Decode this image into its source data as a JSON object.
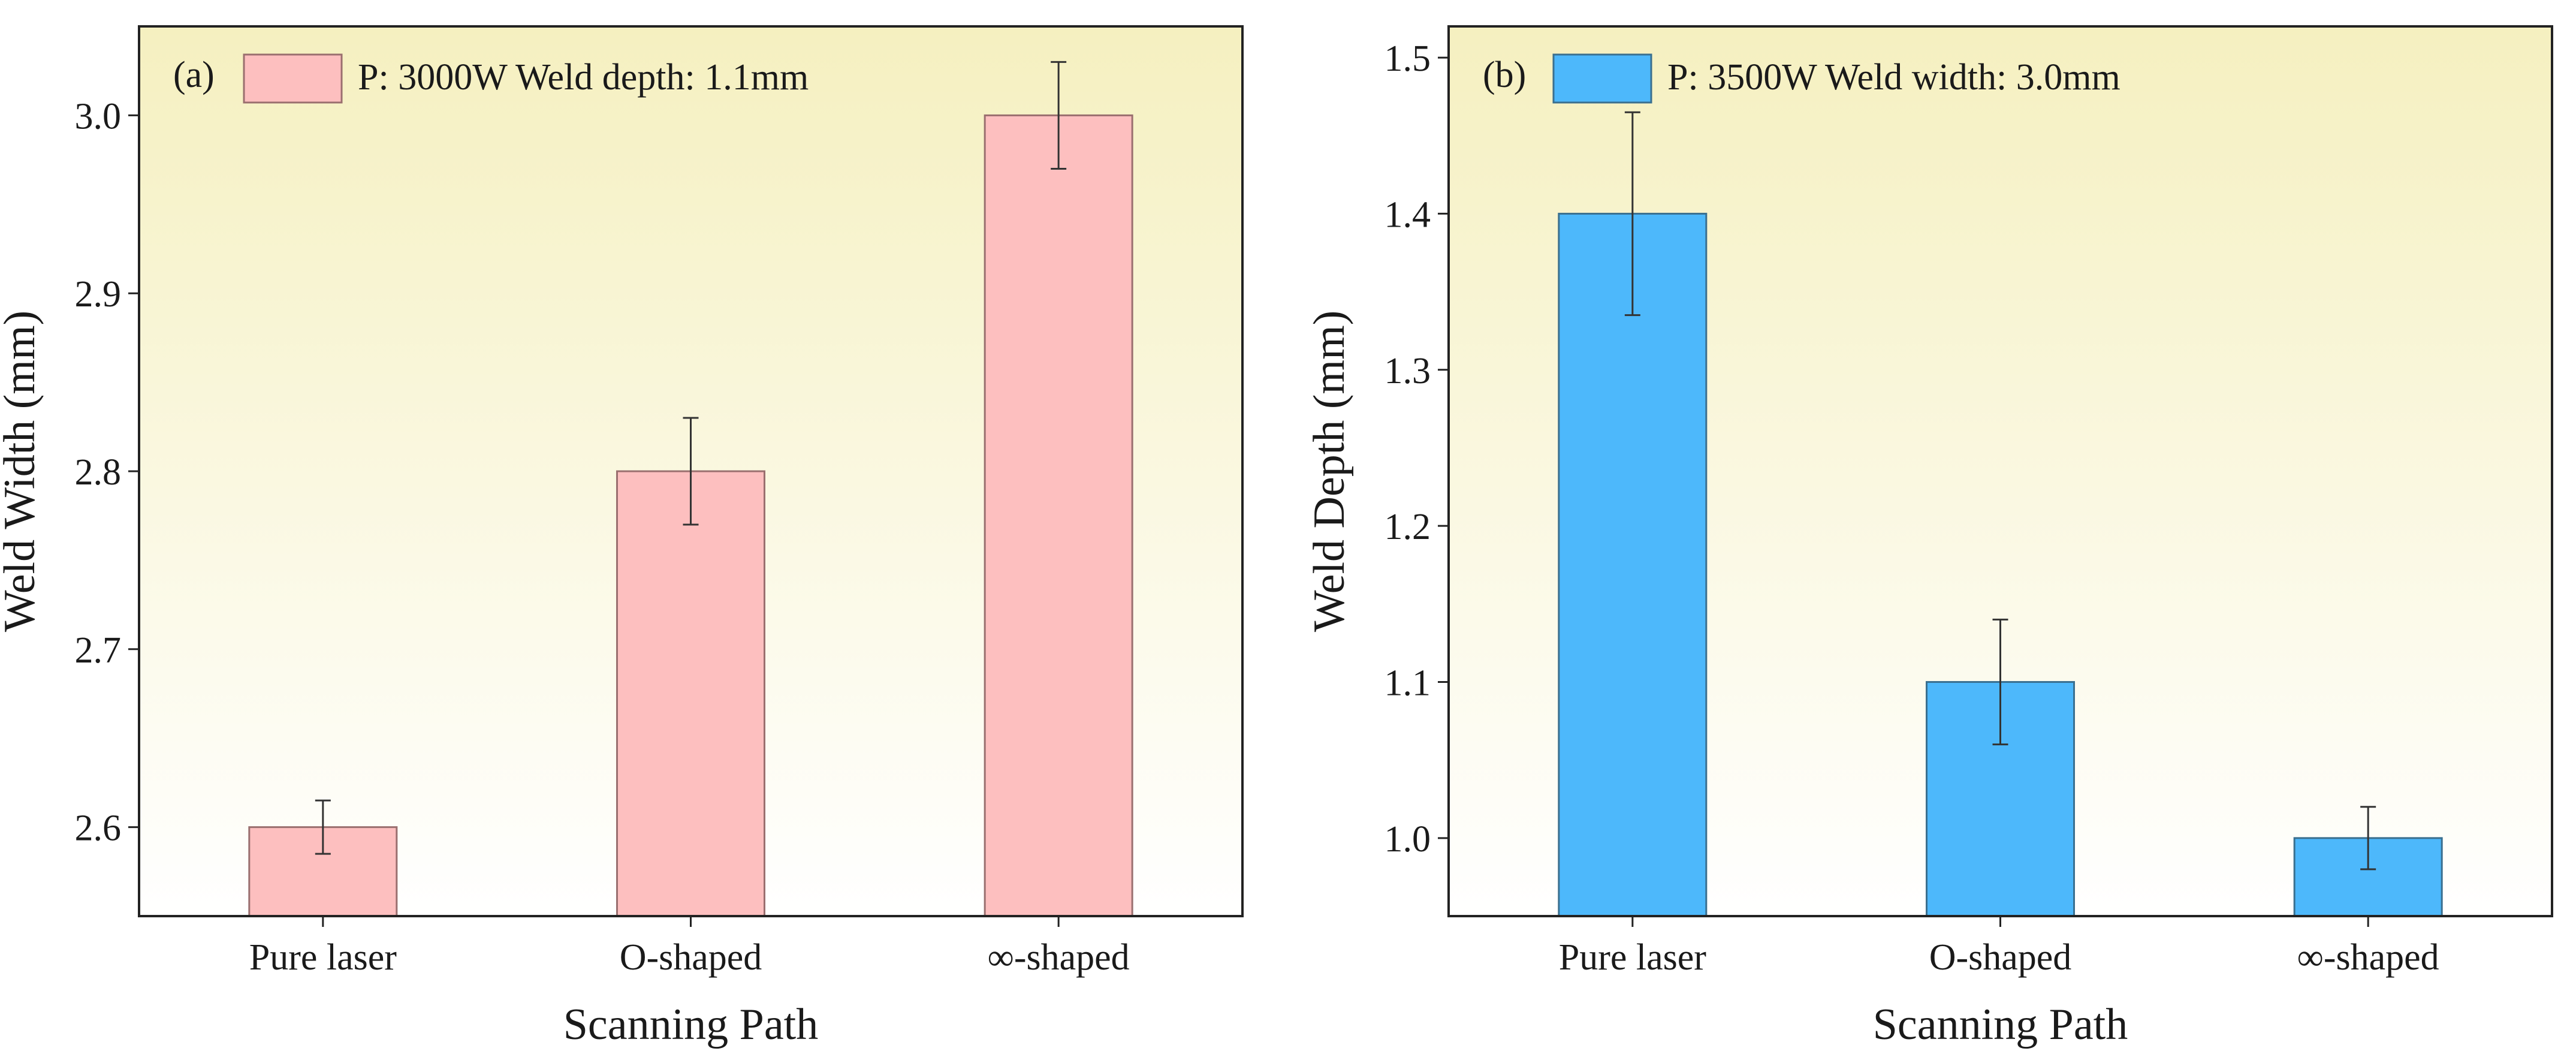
{
  "chart_data": [
    {
      "type": "bar",
      "panel_label": "(a)",
      "legend_label": "P: 3000W Weld depth: 1.1mm",
      "legend_position": "top-left",
      "categories": [
        "Pure laser",
        "O-shaped",
        "∞-shaped"
      ],
      "values": [
        2.6,
        2.8,
        3.0
      ],
      "errors": [
        0.015,
        0.03,
        0.03
      ],
      "xlabel": "Scanning Path",
      "ylabel": "Weld Width (mm)",
      "ylim": [
        2.55,
        3.05
      ],
      "yticks": [
        2.6,
        2.7,
        2.8,
        2.9,
        3.0
      ],
      "ytick_labels": [
        "2.6",
        "2.7",
        "2.8",
        "2.9",
        "3.0"
      ],
      "grid": false,
      "bar_color": "#fdbfbf",
      "bar_edge": "#9a6f6f",
      "background_gradient": [
        "#f5f0c0",
        "#ffffff"
      ]
    },
    {
      "type": "bar",
      "panel_label": "(b)",
      "legend_label": "P: 3500W Weld width: 3.0mm",
      "legend_position": "top-left",
      "categories": [
        "Pure laser",
        "O-shaped",
        "∞-shaped"
      ],
      "values": [
        1.4,
        1.1,
        1.0
      ],
      "errors": [
        0.065,
        0.04,
        0.02
      ],
      "xlabel": "Scanning Path",
      "ylabel": "Weld Depth (mm)",
      "ylim": [
        0.95,
        1.52
      ],
      "yticks": [
        1.0,
        1.1,
        1.2,
        1.3,
        1.4,
        1.5
      ],
      "ytick_labels": [
        "1.0",
        "1.1",
        "1.2",
        "1.3",
        "1.4",
        "1.5"
      ],
      "grid": false,
      "bar_color": "#4db8fb",
      "bar_edge": "#3a6f8f",
      "background_gradient": [
        "#f5f0c0",
        "#ffffff"
      ]
    }
  ]
}
